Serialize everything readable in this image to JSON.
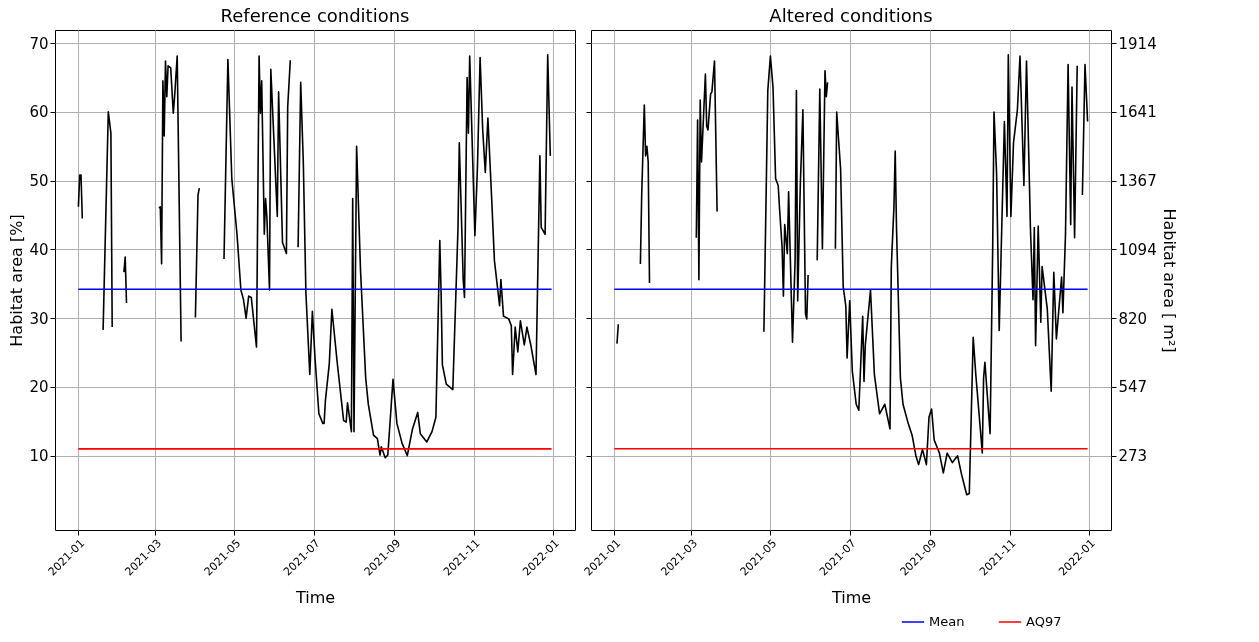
{
  "chart_data": [
    {
      "type": "line",
      "title": "Reference conditions",
      "xlabel": "Time",
      "ylabel": "Habitat area [%]",
      "xlim": [
        "2020-12-14",
        "2022-01-18"
      ],
      "xticks": [
        "2021-01",
        "2021-03",
        "2021-05",
        "2021-07",
        "2021-09",
        "2021-11",
        "2022-01"
      ],
      "ylim": [
        -0.8,
        71.9
      ],
      "yticks": [
        10,
        20,
        30,
        40,
        50,
        60,
        70
      ],
      "grid": true,
      "series": [
        {
          "color": "#000000",
          "x": [
            "2021-01-01",
            "2021-01-02",
            "2021-01-03",
            "2021-01-04",
            "2021-01-10",
            "2021-01-20",
            "2021-01-24",
            "2021-01-26",
            "2021-01-27",
            "2021-02-01",
            "2021-02-05",
            "2021-02-06",
            "2021-02-07",
            "2021-02-20",
            "2021-03-04",
            "2021-03-05",
            "2021-03-06",
            "2021-03-07",
            "2021-03-08",
            "2021-03-09",
            "2021-03-10",
            "2021-03-11",
            "2021-03-13",
            "2021-03-15",
            "2021-03-16",
            "2021-03-18",
            "2021-03-21",
            "2021-03-26",
            "2021-04-01",
            "2021-04-03",
            "2021-04-04",
            "2021-04-15",
            "2021-04-23",
            "2021-04-26",
            "2021-04-29",
            "2021-05-03",
            "2021-05-06",
            "2021-05-08",
            "2021-05-10",
            "2021-05-12",
            "2021-05-14",
            "2021-05-18",
            "2021-05-20",
            "2021-05-21",
            "2021-05-22",
            "2021-05-24",
            "2021-05-25",
            "2021-05-26",
            "2021-05-28",
            "2021-05-29",
            "2021-06-03",
            "2021-06-04",
            "2021-06-07",
            "2021-06-10",
            "2021-06-11",
            "2021-06-13",
            "2021-06-16",
            "2021-06-19",
            "2021-06-21",
            "2021-06-23",
            "2021-06-25",
            "2021-06-28",
            "2021-06-30",
            "2021-07-02",
            "2021-07-05",
            "2021-07-08",
            "2021-07-09",
            "2021-07-10",
            "2021-07-13",
            "2021-07-15",
            "2021-07-19",
            "2021-07-24",
            "2021-07-26",
            "2021-07-27",
            "2021-07-30",
            "2021-07-31",
            "2021-08-01",
            "2021-08-03",
            "2021-08-06",
            "2021-08-10",
            "2021-08-12",
            "2021-08-16",
            "2021-08-19",
            "2021-08-21",
            "2021-08-22",
            "2021-08-25",
            "2021-08-27",
            "2021-08-31",
            "2021-09-03",
            "2021-09-07",
            "2021-09-11",
            "2021-09-15",
            "2021-09-19",
            "2021-09-21",
            "2021-09-26",
            "2021-09-30",
            "2021-10-03",
            "2021-10-06",
            "2021-10-07",
            "2021-10-08",
            "2021-10-11",
            "2021-10-16",
            "2021-10-20",
            "2021-10-21",
            "2021-10-24",
            "2021-10-25",
            "2021-10-27",
            "2021-10-28",
            "2021-10-29",
            "2021-11-02",
            "2021-11-04",
            "2021-11-06",
            "2021-11-08",
            "2021-11-10",
            "2021-11-12",
            "2021-11-15",
            "2021-11-17",
            "2021-11-21",
            "2021-11-22",
            "2021-11-24",
            "2021-11-28",
            "2021-11-30",
            "2021-12-01",
            "2021-12-03",
            "2021-12-05",
            "2021-12-07",
            "2021-12-10",
            "2021-12-12",
            "2021-12-15",
            "2021-12-19",
            "2021-12-22",
            "2021-12-23",
            "2021-12-26",
            "2021-12-28",
            "2021-12-30"
          ],
          "values": [
            46.2,
            50.8,
            50.8,
            44.5,
            null,
            28.3,
            60.0,
            56.9,
            28.7,
            null,
            36.7,
            38.9,
            32.2,
            null,
            46.0,
            46.2,
            37.9,
            64.5,
            56.5,
            67.4,
            62.2,
            66.7,
            66.4,
            59.8,
            62.2,
            68.1,
            26.6,
            null,
            30.1,
            47.9,
            48.9,
            null,
            38.6,
            67.6,
            50.3,
            42.2,
            34.1,
            32.7,
            30.0,
            33.2,
            33.0,
            25.8,
            68.1,
            59.8,
            64.5,
            42.2,
            47.4,
            44.6,
            34.1,
            66.2,
            44.8,
            62.9,
            41.0,
            39.4,
            60.7,
            67.5,
            null,
            40.3,
            64.3,
            52.7,
            33.7,
            21.8,
            31.0,
            24.2,
            16.1,
            14.7,
            14.7,
            18.0,
            23.4,
            31.3,
            23.7,
            15.1,
            14.9,
            17.7,
            13.5,
            47.4,
            13.5,
            55.0,
            37.0,
            21.3,
            17.5,
            13.0,
            12.5,
            10.1,
            11.3,
            9.7,
            10.1,
            21.1,
            14.7,
            11.8,
            10.0,
            13.9,
            16.3,
            13.2,
            12.0,
            13.5,
            15.6,
            41.3,
            33.7,
            23.2,
            20.4,
            19.6,
            43.1,
            55.5,
            35.6,
            33.0,
            65.0,
            56.9,
            68.1,
            42.0,
            52.2,
            67.9,
            57.4,
            51.2,
            59.1,
            47.0,
            38.4,
            31.8,
            35.6,
            30.3,
            29.9,
            28.9,
            21.8,
            28.7,
            25.1,
            29.6,
            26.1,
            28.7,
            26.1,
            21.8,
            53.6,
            43.2,
            42.2,
            68.3,
            53.6
          ]
        },
        {
          "color": "#0000ff",
          "x": [
            "2021-01-01",
            "2021-12-31"
          ],
          "values": [
            34.2,
            34.2
          ]
        },
        {
          "color": "#ff0000",
          "x": [
            "2021-01-01",
            "2021-12-31"
          ],
          "values": [
            11,
            11
          ]
        }
      ]
    },
    {
      "type": "line",
      "title": "Altered conditions",
      "xlabel": "Time",
      "y2label": "Habitat area [ m²]",
      "xlim": [
        "2020-12-14",
        "2022-01-18"
      ],
      "xticks": [
        "2021-01",
        "2021-03",
        "2021-05",
        "2021-07",
        "2021-09",
        "2021-11",
        "2022-01"
      ],
      "y2lim": [
        -22,
        1966
      ],
      "y2ticks": [
        273,
        547,
        820,
        1094,
        1367,
        1641,
        1914
      ],
      "grid": true,
      "legend": "bottom right",
      "series": [
        {
          "color": "#000000",
          "axis": "y2",
          "x": [
            "2021-01-03",
            "2021-01-04",
            "2021-01-12",
            "2021-01-21",
            "2021-01-22",
            "2021-01-24",
            "2021-01-25",
            "2021-01-26",
            "2021-01-27",
            "2021-01-28",
            "2021-02-15",
            "2021-03-05",
            "2021-03-06",
            "2021-03-07",
            "2021-03-08",
            "2021-03-09",
            "2021-03-12",
            "2021-03-13",
            "2021-03-14",
            "2021-03-16",
            "2021-03-17",
            "2021-03-19",
            "2021-03-21",
            "2021-04-10",
            "2021-04-26",
            "2021-04-29",
            "2021-05-01",
            "2021-05-03",
            "2021-05-05",
            "2021-05-07",
            "2021-05-08",
            "2021-05-10",
            "2021-05-11",
            "2021-05-12",
            "2021-05-14",
            "2021-05-15",
            "2021-05-18",
            "2021-05-20",
            "2021-05-21",
            "2021-05-22",
            "2021-05-24",
            "2021-05-26",
            "2021-05-28",
            "2021-05-29",
            "2021-05-30",
            "2021-06-03",
            "2021-06-06",
            "2021-06-08",
            "2021-06-10",
            "2021-06-12",
            "2021-06-13",
            "2021-06-14",
            "2021-06-17",
            "2021-06-20",
            "2021-06-21",
            "2021-06-24",
            "2021-06-26",
            "2021-06-28",
            "2021-06-29",
            "2021-07-01",
            "2021-07-03",
            "2021-07-06",
            "2021-07-08",
            "2021-07-11",
            "2021-07-12",
            "2021-07-13",
            "2021-07-17",
            "2021-07-20",
            "2021-07-24",
            "2021-07-28",
            "2021-08-01",
            "2021-08-02",
            "2021-08-04",
            "2021-08-05",
            "2021-08-06",
            "2021-08-09",
            "2021-08-11",
            "2021-08-15",
            "2021-08-18",
            "2021-08-21",
            "2021-08-23",
            "2021-08-26",
            "2021-08-29",
            "2021-08-31",
            "2021-09-02",
            "2021-09-04",
            "2021-09-08",
            "2021-09-11",
            "2021-09-14",
            "2021-09-18",
            "2021-09-22",
            "2021-09-25",
            "2021-09-29",
            "2021-10-01",
            "2021-10-04",
            "2021-10-06",
            "2021-10-11",
            "2021-10-12",
            "2021-10-13",
            "2021-10-17",
            "2021-10-19",
            "2021-10-20",
            "2021-10-22",
            "2021-10-24",
            "2021-10-28",
            "2021-10-30",
            "2021-10-31",
            "2021-11-02",
            "2021-11-04",
            "2021-11-07",
            "2021-11-09",
            "2021-11-12",
            "2021-11-14",
            "2021-11-16",
            "2021-11-17",
            "2021-11-19",
            "2021-11-20",
            "2021-11-21",
            "2021-11-23",
            "2021-11-25",
            "2021-11-26",
            "2021-11-30",
            "2021-12-03",
            "2021-12-05",
            "2021-12-07",
            "2021-12-11",
            "2021-12-12",
            "2021-12-14",
            "2021-12-16",
            "2021-12-18",
            "2021-12-19",
            "2021-12-21",
            "2021-12-23",
            "2021-12-25",
            "2021-12-27",
            "2021-12-29",
            "2021-12-31"
          ],
          "values": [
            719,
            796,
            null,
            1036,
            1310,
            1668,
            1465,
            1504,
            1441,
            960,
            null,
            1140,
            1608,
            973,
            1687,
            1441,
            1791,
            1583,
            1569,
            1711,
            1720,
            1843,
            1244,
            null,
            766,
            1725,
            1862,
            1739,
            1375,
            1348,
            1258,
            1102,
            908,
            1192,
            1077,
            1323,
            725,
            1050,
            1725,
            889,
            1348,
            1649,
            837,
            817,
            992,
            null,
            1050,
            1731,
            1096,
            1804,
            1701,
            1758,
            null,
            1096,
            1640,
            1413,
            946,
            869,
            662,
            889,
            610,
            478,
            454,
            828,
            569,
            714,
            932,
            596,
            440,
            478,
            380,
            1025,
            1258,
            1485,
            1181,
            582,
            478,
            402,
            355,
            271,
            238,
            298,
            238,
            427,
            459,
            336,
            284,
            205,
            284,
            246,
            273,
            200,
            118,
            123,
            744,
            596,
            284,
            582,
            645,
            361,
            1102,
            1640,
            1394,
            771,
            1602,
            1225,
            1867,
            1225,
            1517,
            1649,
            1862,
            1348,
            1843,
            1413,
            1181,
            894,
            1181,
            711,
            1187,
            804,
            1025,
            856,
            530,
            1003,
            738,
            984,
            842,
            1154,
            1829,
            1192,
            1739,
            1140,
            1824,
            null,
            1310,
            1829,
            1602
          ]
        },
        {
          "name": "Mean",
          "color": "#0000ff",
          "axis": "y2",
          "x": [
            "2021-01-01",
            "2021-12-31"
          ],
          "values": [
            935,
            935
          ]
        },
        {
          "name": "AQ97",
          "color": "#ff0000",
          "axis": "y2",
          "x": [
            "2021-01-01",
            "2021-12-31"
          ],
          "values": [
            301,
            301
          ]
        }
      ]
    }
  ]
}
